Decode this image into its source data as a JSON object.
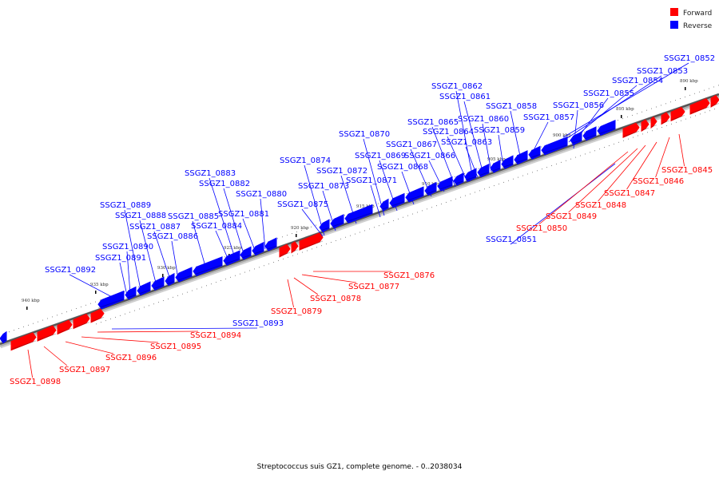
{
  "legend": {
    "forward_label": "Forward",
    "reverse_label": "Reverse",
    "forward_color": "#ff0000",
    "reverse_color": "#0000ff"
  },
  "caption": "Streptococcus suis GZ1, complete genome. - 0..2038034",
  "ticks": [
    "890 kbp",
    "895 kbp",
    "900 kbp",
    "905 kbp",
    "910 kbp",
    "915 kbp",
    "920 kbp",
    "925 kbp",
    "930 kbp",
    "935 kbp",
    "940 kbp"
  ],
  "reverse_genes": [
    "SSGZ1_0851",
    "SSGZ1_0852",
    "SSGZ1_0853",
    "SSGZ1_0854",
    "SSGZ1_0855",
    "SSGZ1_0856",
    "SSGZ1_0857",
    "SSGZ1_0858",
    "SSGZ1_0859",
    "SSGZ1_0860",
    "SSGZ1_0861",
    "SSGZ1_0862",
    "SSGZ1_0863",
    "SSGZ1_0864",
    "SSGZ1_0865",
    "SSGZ1_0866",
    "SSGZ1_0867",
    "SSGZ1_0868",
    "SSGZ1_0869",
    "SSGZ1_0870",
    "SSGZ1_0871",
    "SSGZ1_0872",
    "SSGZ1_0873",
    "SSGZ1_0874",
    "SSGZ1_0875",
    "SSGZ1_0880",
    "SSGZ1_0881",
    "SSGZ1_0882",
    "SSGZ1_0883",
    "SSGZ1_0884",
    "SSGZ1_0885",
    "SSGZ1_0886",
    "SSGZ1_0887",
    "SSGZ1_0888",
    "SSGZ1_0889",
    "SSGZ1_0890",
    "SSGZ1_0891",
    "SSGZ1_0892",
    "SSGZ1_0893"
  ],
  "forward_genes": [
    "SSGZ1_0845",
    "SSGZ1_0846",
    "SSGZ1_0847",
    "SSGZ1_0848",
    "SSGZ1_0849",
    "SSGZ1_0850",
    "SSGZ1_0876",
    "SSGZ1_0877",
    "SSGZ1_0878",
    "SSGZ1_0879",
    "SSGZ1_0894",
    "SSGZ1_0895",
    "SSGZ1_0896",
    "SSGZ1_0897",
    "SSGZ1_0898"
  ]
}
